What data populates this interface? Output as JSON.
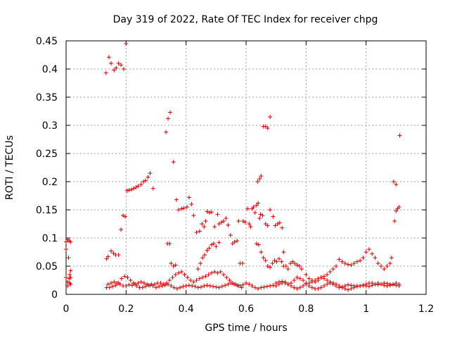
{
  "chart_data": {
    "type": "scatter",
    "title": "Day 319 of 2022, Rate Of TEC Index for receiver chpg",
    "xlabel": "GPS time / hours",
    "ylabel": "ROTI / TECUs",
    "xlim": [
      0,
      1.2
    ],
    "ylim": [
      0,
      0.45
    ],
    "xticks": [
      "0",
      "0.2",
      "0.4",
      "0.6",
      "0.8",
      "1",
      "1.2"
    ],
    "yticks": [
      "0",
      "0.05",
      "0.1",
      "0.15",
      "0.2",
      "0.25",
      "0.3",
      "0.35",
      "0.4",
      "0.45"
    ],
    "grid": true,
    "marker": "+",
    "color": "#cc0000",
    "points": [
      [
        0.0,
        0.08
      ],
      [
        0.0,
        0.093
      ],
      [
        0.005,
        0.097
      ],
      [
        0.01,
        0.095
      ],
      [
        0.015,
        0.093
      ],
      [
        0.008,
        0.065
      ],
      [
        0.012,
        0.035
      ],
      [
        0.015,
        0.042
      ],
      [
        0.0,
        0.03
      ],
      [
        0.005,
        0.022
      ],
      [
        0.01,
        0.028
      ],
      [
        0.015,
        0.018
      ],
      [
        0.005,
        0.015
      ],
      [
        0.012,
        0.02
      ],
      [
        0.015,
        0.03
      ],
      [
        0.133,
        0.393
      ],
      [
        0.143,
        0.421
      ],
      [
        0.15,
        0.41
      ],
      [
        0.16,
        0.398
      ],
      [
        0.167,
        0.402
      ],
      [
        0.175,
        0.41
      ],
      [
        0.183,
        0.407
      ],
      [
        0.192,
        0.4
      ],
      [
        0.2,
        0.445
      ],
      [
        0.135,
        0.063
      ],
      [
        0.14,
        0.067
      ],
      [
        0.15,
        0.077
      ],
      [
        0.158,
        0.073
      ],
      [
        0.165,
        0.07
      ],
      [
        0.175,
        0.07
      ],
      [
        0.183,
        0.115
      ],
      [
        0.19,
        0.14
      ],
      [
        0.197,
        0.138
      ],
      [
        0.203,
        0.184
      ],
      [
        0.21,
        0.185
      ],
      [
        0.218,
        0.186
      ],
      [
        0.225,
        0.188
      ],
      [
        0.233,
        0.19
      ],
      [
        0.24,
        0.192
      ],
      [
        0.25,
        0.195
      ],
      [
        0.258,
        0.2
      ],
      [
        0.265,
        0.202
      ],
      [
        0.273,
        0.208
      ],
      [
        0.28,
        0.215
      ],
      [
        0.29,
        0.188
      ],
      [
        0.333,
        0.288
      ],
      [
        0.34,
        0.312
      ],
      [
        0.347,
        0.323
      ],
      [
        0.358,
        0.235
      ],
      [
        0.338,
        0.09
      ],
      [
        0.345,
        0.09
      ],
      [
        0.35,
        0.055
      ],
      [
        0.358,
        0.05
      ],
      [
        0.365,
        0.052
      ],
      [
        0.368,
        0.168
      ],
      [
        0.375,
        0.15
      ],
      [
        0.385,
        0.152
      ],
      [
        0.393,
        0.153
      ],
      [
        0.403,
        0.155
      ],
      [
        0.41,
        0.172
      ],
      [
        0.418,
        0.16
      ],
      [
        0.425,
        0.14
      ],
      [
        0.435,
        0.11
      ],
      [
        0.445,
        0.112
      ],
      [
        0.453,
        0.125
      ],
      [
        0.46,
        0.12
      ],
      [
        0.465,
        0.13
      ],
      [
        0.47,
        0.147
      ],
      [
        0.478,
        0.145
      ],
      [
        0.485,
        0.146
      ],
      [
        0.495,
        0.12
      ],
      [
        0.505,
        0.142
      ],
      [
        0.51,
        0.125
      ],
      [
        0.518,
        0.128
      ],
      [
        0.525,
        0.13
      ],
      [
        0.533,
        0.135
      ],
      [
        0.54,
        0.123
      ],
      [
        0.548,
        0.105
      ],
      [
        0.555,
        0.09
      ],
      [
        0.562,
        0.093
      ],
      [
        0.57,
        0.095
      ],
      [
        0.575,
        0.13
      ],
      [
        0.58,
        0.055
      ],
      [
        0.588,
        0.055
      ],
      [
        0.59,
        0.13
      ],
      [
        0.597,
        0.128
      ],
      [
        0.605,
        0.152
      ],
      [
        0.61,
        0.125
      ],
      [
        0.615,
        0.12
      ],
      [
        0.62,
        0.152
      ],
      [
        0.625,
        0.155
      ],
      [
        0.63,
        0.145
      ],
      [
        0.635,
        0.158
      ],
      [
        0.64,
        0.162
      ],
      [
        0.645,
        0.135
      ],
      [
        0.638,
        0.2
      ],
      [
        0.645,
        0.205
      ],
      [
        0.65,
        0.21
      ],
      [
        0.648,
        0.142
      ],
      [
        0.655,
        0.14
      ],
      [
        0.658,
        0.298
      ],
      [
        0.665,
        0.298
      ],
      [
        0.672,
        0.295
      ],
      [
        0.68,
        0.315
      ],
      [
        0.665,
        0.125
      ],
      [
        0.672,
        0.122
      ],
      [
        0.68,
        0.15
      ],
      [
        0.69,
        0.138
      ],
      [
        0.697,
        0.122
      ],
      [
        0.705,
        0.125
      ],
      [
        0.712,
        0.127
      ],
      [
        0.72,
        0.118
      ],
      [
        0.725,
        0.075
      ],
      [
        0.44,
        0.045
      ],
      [
        0.448,
        0.055
      ],
      [
        0.455,
        0.065
      ],
      [
        0.462,
        0.07
      ],
      [
        0.47,
        0.078
      ],
      [
        0.477,
        0.082
      ],
      [
        0.485,
        0.088
      ],
      [
        0.492,
        0.09
      ],
      [
        0.5,
        0.085
      ],
      [
        0.51,
        0.092
      ],
      [
        0.635,
        0.09
      ],
      [
        0.642,
        0.088
      ],
      [
        0.65,
        0.075
      ],
      [
        0.658,
        0.065
      ],
      [
        0.665,
        0.06
      ],
      [
        0.672,
        0.05
      ],
      [
        0.68,
        0.048
      ],
      [
        0.688,
        0.055
      ],
      [
        0.695,
        0.06
      ],
      [
        0.702,
        0.058
      ],
      [
        0.71,
        0.063
      ],
      [
        0.718,
        0.058
      ],
      [
        0.725,
        0.05
      ],
      [
        0.733,
        0.05
      ],
      [
        0.74,
        0.045
      ],
      [
        0.748,
        0.055
      ],
      [
        0.755,
        0.058
      ],
      [
        0.762,
        0.055
      ],
      [
        0.77,
        0.052
      ],
      [
        0.778,
        0.05
      ],
      [
        0.785,
        0.045
      ],
      [
        0.8,
        0.035
      ],
      [
        0.81,
        0.028
      ],
      [
        0.82,
        0.025
      ],
      [
        0.83,
        0.022
      ],
      [
        0.84,
        0.025
      ],
      [
        0.85,
        0.03
      ],
      [
        0.86,
        0.032
      ],
      [
        0.87,
        0.035
      ],
      [
        0.88,
        0.04
      ],
      [
        0.89,
        0.045
      ],
      [
        0.9,
        0.05
      ],
      [
        0.91,
        0.062
      ],
      [
        0.92,
        0.058
      ],
      [
        0.93,
        0.055
      ],
      [
        0.94,
        0.053
      ],
      [
        0.95,
        0.052
      ],
      [
        0.96,
        0.055
      ],
      [
        0.97,
        0.058
      ],
      [
        0.98,
        0.06
      ],
      [
        0.99,
        0.065
      ],
      [
        1.0,
        0.075
      ],
      [
        1.01,
        0.08
      ],
      [
        1.02,
        0.072
      ],
      [
        1.03,
        0.065
      ],
      [
        1.04,
        0.055
      ],
      [
        1.05,
        0.05
      ],
      [
        1.06,
        0.045
      ],
      [
        1.07,
        0.05
      ],
      [
        1.08,
        0.055
      ],
      [
        1.085,
        0.065
      ],
      [
        1.092,
        0.2
      ],
      [
        1.1,
        0.195
      ],
      [
        1.095,
        0.13
      ],
      [
        1.1,
        0.148
      ],
      [
        1.105,
        0.152
      ],
      [
        1.11,
        0.155
      ],
      [
        1.112,
        0.282
      ],
      [
        0.135,
        0.012
      ],
      [
        0.145,
        0.012
      ],
      [
        0.155,
        0.014
      ],
      [
        0.165,
        0.016
      ],
      [
        0.175,
        0.02
      ],
      [
        0.185,
        0.028
      ],
      [
        0.195,
        0.032
      ],
      [
        0.205,
        0.03
      ],
      [
        0.215,
        0.025
      ],
      [
        0.225,
        0.02
      ],
      [
        0.235,
        0.015
      ],
      [
        0.245,
        0.012
      ],
      [
        0.255,
        0.012
      ],
      [
        0.265,
        0.014
      ],
      [
        0.275,
        0.016
      ],
      [
        0.285,
        0.018
      ],
      [
        0.295,
        0.018
      ],
      [
        0.305,
        0.02
      ],
      [
        0.315,
        0.02
      ],
      [
        0.325,
        0.018
      ],
      [
        0.335,
        0.02
      ],
      [
        0.345,
        0.025
      ],
      [
        0.355,
        0.03
      ],
      [
        0.365,
        0.035
      ],
      [
        0.375,
        0.038
      ],
      [
        0.385,
        0.04
      ],
      [
        0.395,
        0.035
      ],
      [
        0.405,
        0.03
      ],
      [
        0.415,
        0.025
      ],
      [
        0.425,
        0.022
      ],
      [
        0.435,
        0.025
      ],
      [
        0.445,
        0.028
      ],
      [
        0.455,
        0.03
      ],
      [
        0.465,
        0.032
      ],
      [
        0.475,
        0.035
      ],
      [
        0.485,
        0.038
      ],
      [
        0.495,
        0.04
      ],
      [
        0.505,
        0.038
      ],
      [
        0.515,
        0.04
      ],
      [
        0.525,
        0.035
      ],
      [
        0.535,
        0.03
      ],
      [
        0.545,
        0.025
      ],
      [
        0.555,
        0.02
      ],
      [
        0.565,
        0.018
      ],
      [
        0.575,
        0.015
      ],
      [
        0.585,
        0.012
      ],
      [
        0.14,
        0.018
      ],
      [
        0.15,
        0.02
      ],
      [
        0.16,
        0.022
      ],
      [
        0.17,
        0.02
      ],
      [
        0.18,
        0.018
      ],
      [
        0.19,
        0.015
      ],
      [
        0.2,
        0.015
      ],
      [
        0.21,
        0.017
      ],
      [
        0.22,
        0.016
      ],
      [
        0.23,
        0.018
      ],
      [
        0.24,
        0.02
      ],
      [
        0.25,
        0.022
      ],
      [
        0.26,
        0.02
      ],
      [
        0.27,
        0.018
      ],
      [
        0.28,
        0.016
      ],
      [
        0.29,
        0.015
      ],
      [
        0.3,
        0.012
      ],
      [
        0.31,
        0.014
      ],
      [
        0.32,
        0.015
      ],
      [
        0.33,
        0.016
      ],
      [
        0.34,
        0.018
      ],
      [
        0.35,
        0.015
      ],
      [
        0.36,
        0.012
      ],
      [
        0.37,
        0.01
      ],
      [
        0.38,
        0.012
      ],
      [
        0.39,
        0.014
      ],
      [
        0.4,
        0.015
      ],
      [
        0.41,
        0.016
      ],
      [
        0.42,
        0.015
      ],
      [
        0.43,
        0.014
      ],
      [
        0.44,
        0.012
      ],
      [
        0.45,
        0.013
      ],
      [
        0.46,
        0.015
      ],
      [
        0.47,
        0.016
      ],
      [
        0.48,
        0.015
      ],
      [
        0.49,
        0.014
      ],
      [
        0.5,
        0.013
      ],
      [
        0.51,
        0.012
      ],
      [
        0.52,
        0.014
      ],
      [
        0.53,
        0.016
      ],
      [
        0.54,
        0.018
      ],
      [
        0.55,
        0.02
      ],
      [
        0.56,
        0.018
      ],
      [
        0.57,
        0.016
      ],
      [
        0.58,
        0.015
      ],
      [
        0.59,
        0.017
      ],
      [
        0.6,
        0.02
      ],
      [
        0.61,
        0.018
      ],
      [
        0.62,
        0.015
      ],
      [
        0.63,
        0.012
      ],
      [
        0.64,
        0.01
      ],
      [
        0.65,
        0.012
      ],
      [
        0.66,
        0.013
      ],
      [
        0.67,
        0.014
      ],
      [
        0.68,
        0.015
      ],
      [
        0.69,
        0.016
      ],
      [
        0.7,
        0.015
      ],
      [
        0.71,
        0.018
      ],
      [
        0.72,
        0.02
      ],
      [
        0.73,
        0.022
      ],
      [
        0.74,
        0.018
      ],
      [
        0.75,
        0.015
      ],
      [
        0.76,
        0.012
      ],
      [
        0.77,
        0.01
      ],
      [
        0.78,
        0.012
      ],
      [
        0.79,
        0.015
      ],
      [
        0.8,
        0.018
      ],
      [
        0.81,
        0.02
      ],
      [
        0.82,
        0.022
      ],
      [
        0.83,
        0.025
      ],
      [
        0.84,
        0.028
      ],
      [
        0.85,
        0.03
      ],
      [
        0.86,
        0.028
      ],
      [
        0.87,
        0.025
      ],
      [
        0.88,
        0.022
      ],
      [
        0.89,
        0.02
      ],
      [
        0.9,
        0.018
      ],
      [
        0.91,
        0.015
      ],
      [
        0.92,
        0.012
      ],
      [
        0.93,
        0.01
      ],
      [
        0.94,
        0.008
      ],
      [
        0.95,
        0.01
      ],
      [
        0.96,
        0.012
      ],
      [
        0.97,
        0.015
      ],
      [
        0.98,
        0.015
      ],
      [
        0.99,
        0.016
      ],
      [
        1.0,
        0.018
      ],
      [
        1.01,
        0.02
      ],
      [
        1.02,
        0.02
      ],
      [
        1.03,
        0.018
      ],
      [
        1.04,
        0.017
      ],
      [
        1.05,
        0.018
      ],
      [
        1.06,
        0.02
      ],
      [
        1.07,
        0.019
      ],
      [
        1.08,
        0.018
      ],
      [
        1.09,
        0.017
      ],
      [
        1.1,
        0.016
      ],
      [
        1.11,
        0.015
      ],
      [
        0.7,
        0.02
      ],
      [
        0.71,
        0.022
      ],
      [
        0.72,
        0.023
      ],
      [
        0.73,
        0.02
      ],
      [
        0.74,
        0.018
      ],
      [
        0.75,
        0.02
      ],
      [
        0.76,
        0.025
      ],
      [
        0.77,
        0.03
      ],
      [
        0.78,
        0.028
      ],
      [
        0.79,
        0.025
      ],
      [
        0.8,
        0.02
      ],
      [
        0.81,
        0.015
      ],
      [
        0.82,
        0.012
      ],
      [
        0.83,
        0.01
      ],
      [
        0.84,
        0.01
      ],
      [
        0.85,
        0.012
      ],
      [
        0.86,
        0.015
      ],
      [
        0.87,
        0.018
      ],
      [
        0.88,
        0.02
      ],
      [
        0.89,
        0.018
      ],
      [
        0.9,
        0.015
      ],
      [
        0.91,
        0.012
      ],
      [
        0.92,
        0.013
      ],
      [
        0.93,
        0.015
      ],
      [
        0.94,
        0.017
      ],
      [
        0.95,
        0.016
      ],
      [
        0.96,
        0.015
      ],
      [
        0.97,
        0.014
      ],
      [
        0.98,
        0.015
      ],
      [
        0.99,
        0.016
      ],
      [
        1.0,
        0.015
      ],
      [
        1.01,
        0.014
      ],
      [
        1.02,
        0.016
      ],
      [
        1.03,
        0.018
      ],
      [
        1.04,
        0.02
      ],
      [
        1.05,
        0.018
      ],
      [
        1.06,
        0.016
      ],
      [
        1.07,
        0.015
      ],
      [
        1.08,
        0.016
      ],
      [
        1.09,
        0.018
      ],
      [
        1.1,
        0.02
      ],
      [
        1.11,
        0.018
      ]
    ]
  }
}
